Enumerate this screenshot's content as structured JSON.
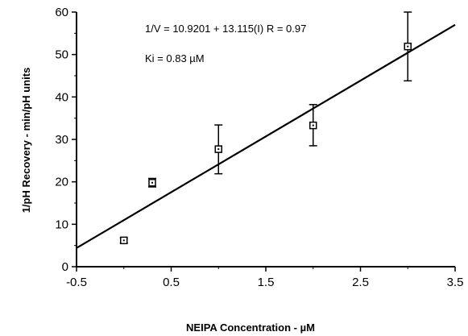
{
  "chart_data": {
    "type": "scatter",
    "title": "",
    "xlabel": "NEIPA Concentration - µM",
    "ylabel": "1/pH Recovery - min/pH units",
    "xlim": [
      -0.5,
      3.5
    ],
    "ylim": [
      0,
      60
    ],
    "x_ticks": [
      -0.5,
      0.5,
      1.5,
      2.5,
      3.5
    ],
    "x_tick_labels": [
      "-0.5",
      "0.5",
      "1.5",
      "2.5",
      "3.5"
    ],
    "y_ticks": [
      0,
      10,
      20,
      30,
      40,
      50,
      60
    ],
    "y_tick_labels": [
      "0",
      "10",
      "20",
      "30",
      "40",
      "50",
      "60"
    ],
    "grid": false,
    "legend": "none",
    "series": [
      {
        "marker": "open-square",
        "points": [
          {
            "x": 0.0,
            "y": 6.2,
            "err_low": 5.6,
            "err_high": 6.8
          },
          {
            "x": 0.3,
            "y": 19.8,
            "err_low": 18.8,
            "err_high": 20.8
          },
          {
            "x": 1.0,
            "y": 27.7,
            "err_low": 21.9,
            "err_high": 33.4
          },
          {
            "x": 2.0,
            "y": 33.3,
            "err_low": 28.5,
            "err_high": 38.2
          },
          {
            "x": 3.0,
            "y": 51.9,
            "err_low": 43.8,
            "err_high": 60.0
          }
        ]
      }
    ],
    "fit_line": {
      "x_start": -0.5,
      "y_start": 4.4,
      "x_end": 3.5,
      "y_end": 57.0
    },
    "annotations": {
      "equation": "1/V = 10.9201 + 13.115(I)   R = 0.97",
      "ki": "Ki = 0.83 µM"
    },
    "colors": {
      "axis": "#000000",
      "line": "#000000",
      "marker_fill": "#ffffff"
    }
  }
}
